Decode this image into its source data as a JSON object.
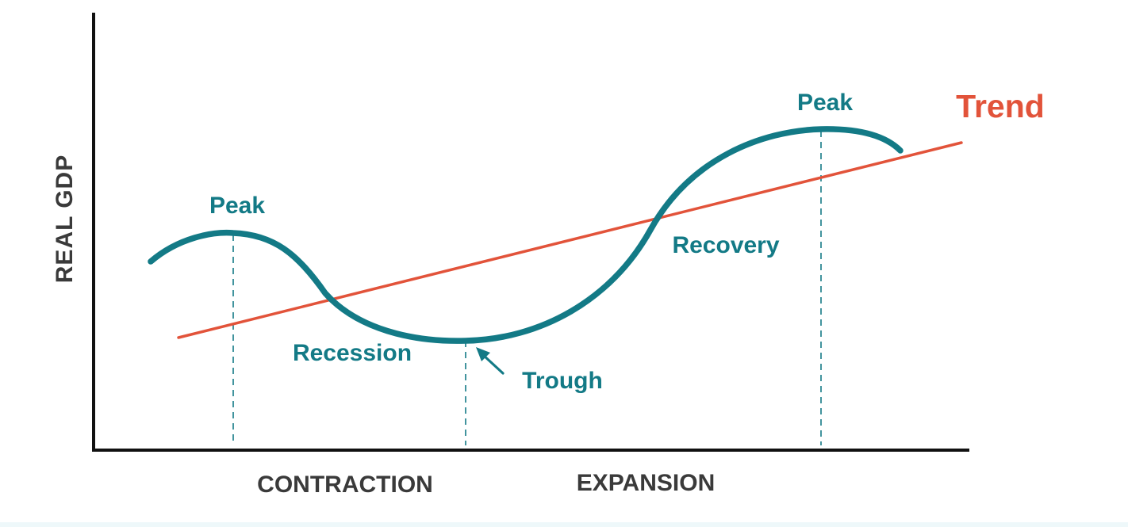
{
  "axis": {
    "y_label": "REAL GDP",
    "contraction_label": "CONTRACTION",
    "expansion_label": "EXPANSION"
  },
  "labels": {
    "peak_left": "Peak",
    "peak_right": "Peak",
    "recession": "Recession",
    "trough": "Trough",
    "recovery": "Recovery",
    "trend": "Trend"
  },
  "colors": {
    "cycle": "#137a86",
    "trend": "#e2533a",
    "axis": "#111111",
    "axis_text": "#3a3a3a"
  }
}
